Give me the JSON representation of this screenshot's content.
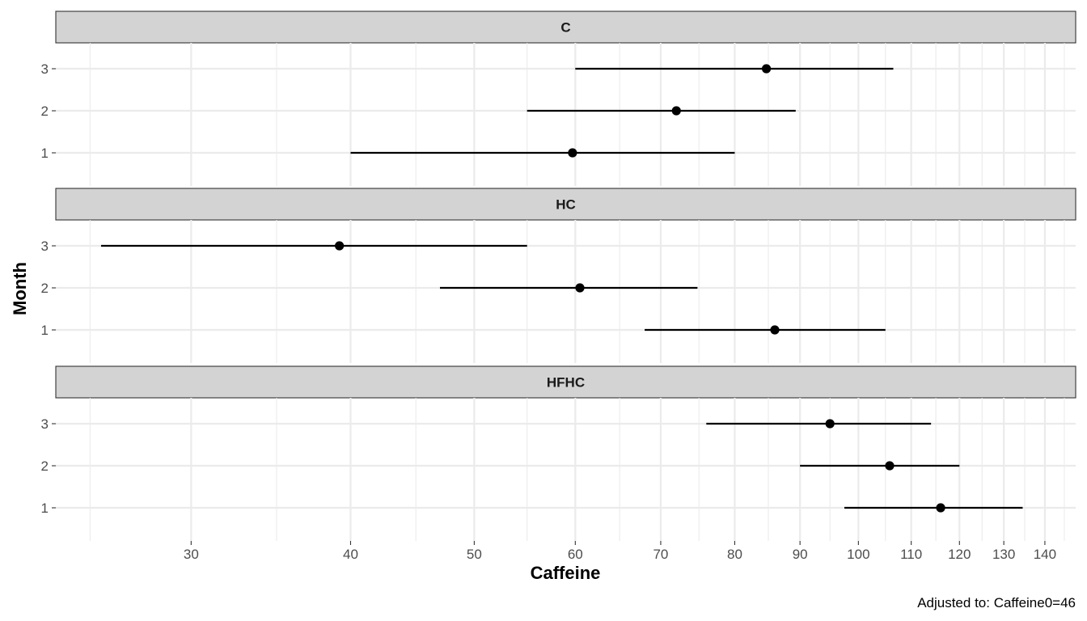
{
  "chart_data": {
    "type": "scatter",
    "subtype": "pointrange",
    "xlabel": "Caffeine",
    "ylabel": "Month",
    "caption": "Adjusted to: Caffeine0=46",
    "x_scale": "log",
    "xlim": [
      23.5,
      148
    ],
    "x_major_ticks": [
      30,
      40,
      50,
      60,
      70,
      80,
      90,
      100,
      110,
      120,
      130,
      140
    ],
    "x_minor_ticks": [
      25,
      35,
      45,
      55,
      65,
      75,
      85,
      95,
      105,
      115,
      125,
      135,
      145
    ],
    "y_categories": [
      "1",
      "2",
      "3"
    ],
    "grid": true,
    "panels": [
      {
        "label": "C",
        "points": [
          {
            "month": "3",
            "estimate": 84.7,
            "lower": 60.0,
            "upper": 106.5
          },
          {
            "month": "2",
            "estimate": 72.0,
            "lower": 55.0,
            "upper": 89.3
          },
          {
            "month": "1",
            "estimate": 59.7,
            "lower": 40.0,
            "upper": 80.0
          }
        ]
      },
      {
        "label": "HC",
        "points": [
          {
            "month": "3",
            "estimate": 39.2,
            "lower": 25.5,
            "upper": 55.0
          },
          {
            "month": "2",
            "estimate": 60.5,
            "lower": 47.0,
            "upper": 74.8
          },
          {
            "month": "1",
            "estimate": 86.0,
            "lower": 68.0,
            "upper": 105.0
          }
        ]
      },
      {
        "label": "HFHC",
        "points": [
          {
            "month": "3",
            "estimate": 95.0,
            "lower": 76.0,
            "upper": 114.0
          },
          {
            "month": "2",
            "estimate": 105.8,
            "lower": 90.0,
            "upper": 120.0
          },
          {
            "month": "1",
            "estimate": 116.0,
            "lower": 97.5,
            "upper": 134.5
          }
        ]
      }
    ]
  }
}
